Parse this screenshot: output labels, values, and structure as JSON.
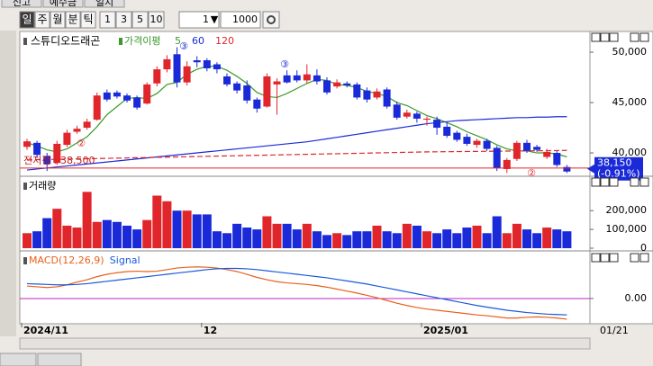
{
  "tabs": [
    "신고",
    "예수금",
    "일지"
  ],
  "toolbar": {
    "periods": [
      "일",
      "주",
      "월",
      "분",
      "틱"
    ],
    "intervals": [
      "1",
      "3",
      "5",
      "10"
    ],
    "unit": "1",
    "count": "1000"
  },
  "chart_data": [
    {
      "type": "candlestick",
      "title": "스튜디오드래곤",
      "legend_title": "가격이평",
      "up_color": "#e0262b",
      "down_color": "#1a2ad8",
      "categories": [
        "2024/11",
        null,
        null,
        null,
        null,
        null,
        null,
        null,
        null,
        null,
        null,
        null,
        null,
        null,
        null,
        null,
        null,
        null,
        "12",
        null,
        null,
        null,
        null,
        null,
        null,
        null,
        null,
        null,
        null,
        null,
        null,
        null,
        null,
        null,
        null,
        null,
        null,
        null,
        null,
        null,
        "2025/01",
        null,
        null,
        null,
        null,
        null,
        null,
        null,
        null,
        null,
        null,
        null,
        null,
        null,
        null
      ],
      "open": [
        40600,
        41000,
        39700,
        39000,
        40800,
        42100,
        42500,
        43300,
        46000,
        46000,
        45700,
        45500,
        44900,
        46900,
        48300,
        49800,
        47000,
        49200,
        49200,
        48800,
        47600,
        46900,
        46700,
        45300,
        44600,
        46800,
        47700,
        47700,
        47200,
        47700,
        47200,
        46600,
        46900,
        46800,
        46200,
        45500,
        46300,
        44800,
        43600,
        43900,
        43300,
        43300,
        42600,
        42000,
        41600,
        40800,
        41200,
        40500,
        38400,
        39400,
        41000,
        40600,
        39600,
        40000,
        38600
      ],
      "close": [
        41150,
        39800,
        38900,
        40900,
        42000,
        42400,
        43100,
        45700,
        45300,
        45600,
        45200,
        44500,
        46800,
        48300,
        49300,
        47000,
        48600,
        49000,
        48400,
        48300,
        46800,
        46200,
        45200,
        44400,
        47600,
        47100,
        47000,
        47200,
        47800,
        47100,
        46000,
        47000,
        46700,
        45500,
        45300,
        46100,
        44600,
        43500,
        44000,
        43400,
        43400,
        42500,
        41700,
        41300,
        40900,
        41200,
        40400,
        38500,
        39300,
        41000,
        40200,
        40300,
        40100,
        38800,
        38150
      ],
      "high": [
        41400,
        41200,
        40000,
        41200,
        42300,
        42700,
        43400,
        46000,
        46300,
        46200,
        45900,
        45700,
        47000,
        48600,
        49700,
        50500,
        49100,
        49600,
        49400,
        49000,
        47900,
        47100,
        47200,
        45500,
        47900,
        47400,
        48200,
        48200,
        48800,
        48300,
        47500,
        47300,
        47100,
        47000,
        46500,
        46400,
        46500,
        45100,
        44300,
        44100,
        43600,
        43600,
        43000,
        42200,
        41900,
        41400,
        41400,
        40700,
        39500,
        41200,
        41300,
        40800,
        40400,
        40200,
        38800
      ],
      "low": [
        40300,
        39500,
        38200,
        38800,
        40600,
        41900,
        42300,
        43200,
        45100,
        45400,
        45000,
        44300,
        44800,
        46600,
        48000,
        46500,
        46700,
        48500,
        48100,
        47900,
        46600,
        45900,
        44900,
        44000,
        44500,
        43800,
        46900,
        47000,
        46900,
        46800,
        45800,
        46400,
        46500,
        45300,
        45000,
        45300,
        44400,
        43300,
        43400,
        43000,
        42700,
        41800,
        41500,
        41100,
        40700,
        40500,
        40200,
        38200,
        38000,
        39200,
        40000,
        40100,
        39400,
        38600,
        38000
      ],
      "series": [
        {
          "name": "5",
          "color": "#3a9a2a",
          "dash": false,
          "values": [
            41000,
            40700,
            40300,
            40100,
            40400,
            41000,
            41600,
            42600,
            43800,
            44600,
            45400,
            45500,
            45400,
            45900,
            46800,
            47000,
            47800,
            48300,
            48600,
            48600,
            48200,
            47600,
            46900,
            46000,
            45600,
            45500,
            45900,
            46400,
            46900,
            47300,
            47200,
            46800,
            46700,
            46500,
            46100,
            45900,
            45600,
            45000,
            44700,
            44200,
            43700,
            43400,
            43000,
            42600,
            42100,
            41700,
            41300,
            40800,
            40400,
            40200,
            40200,
            40000,
            40000,
            39900,
            39600
          ]
        },
        {
          "name": "60",
          "color": "#1a2ad8",
          "dash": false,
          "values": [
            38300,
            38400,
            38500,
            38600,
            38700,
            38800,
            38900,
            39000,
            39100,
            39200,
            39300,
            39400,
            39500,
            39600,
            39700,
            39800,
            39900,
            40000,
            40100,
            40200,
            40300,
            40400,
            40500,
            40600,
            40700,
            40800,
            40900,
            41000,
            41100,
            41250,
            41400,
            41550,
            41700,
            41850,
            42000,
            42150,
            42300,
            42450,
            42600,
            42750,
            42900,
            43000,
            43100,
            43200,
            43250,
            43300,
            43350,
            43400,
            43450,
            43500,
            43500,
            43550,
            43550,
            43600,
            43600
          ]
        },
        {
          "name": "120",
          "color": "#e0262b",
          "dash": true,
          "values": [
            39300,
            39320,
            39340,
            39360,
            39380,
            39400,
            39420,
            39440,
            39460,
            39480,
            39500,
            39520,
            39540,
            39560,
            39580,
            39600,
            39620,
            39640,
            39660,
            39680,
            39700,
            39720,
            39740,
            39760,
            39780,
            39800,
            39820,
            39840,
            39860,
            39880,
            39900,
            39920,
            39940,
            39960,
            39980,
            40000,
            40020,
            40040,
            40060,
            40080,
            40100,
            40110,
            40120,
            40130,
            40140,
            40150,
            40160,
            40170,
            40180,
            40190,
            40200,
            40210,
            40220,
            40230,
            40250
          ]
        }
      ],
      "ylim": [
        37770,
        51880
      ],
      "yticks": [
        {
          "value": 40000,
          "label": "40,000"
        },
        {
          "value": 45000,
          "label": "45,000"
        },
        {
          "value": 50000,
          "label": "50,000"
        }
      ],
      "low_line": {
        "value": 38500,
        "label": "전저점 : 38,500"
      },
      "current": {
        "value": 38150,
        "label": "38,150",
        "change": "(-0.91%)"
      },
      "annotations": [
        "②",
        "③",
        "③",
        "②"
      ],
      "cursor_date": "01/21"
    },
    {
      "type": "bar",
      "title": "거래량",
      "values": [
        80000,
        90000,
        160000,
        210000,
        120000,
        110000,
        300000,
        140000,
        150000,
        140000,
        120000,
        100000,
        150000,
        280000,
        250000,
        200000,
        200000,
        180000,
        180000,
        90000,
        80000,
        130000,
        110000,
        100000,
        170000,
        130000,
        130000,
        100000,
        130000,
        90000,
        70000,
        80000,
        70000,
        90000,
        90000,
        120000,
        90000,
        80000,
        130000,
        120000,
        90000,
        80000,
        100000,
        80000,
        110000,
        120000,
        80000,
        170000,
        80000,
        130000,
        100000,
        80000,
        110000,
        100000,
        90000
      ],
      "ylim": [
        0,
        340000
      ],
      "yticks": [
        0,
        {
          "value": 100000,
          "label": "100,000"
        },
        {
          "value": 200000,
          "label": "200,000"
        }
      ]
    },
    {
      "type": "line",
      "series": [
        {
          "name": "MACD(12,26,9)",
          "color": "#e8601c",
          "values": [
            320,
            300,
            280,
            300,
            350,
            420,
            480,
            560,
            620,
            660,
            690,
            700,
            690,
            700,
            740,
            780,
            800,
            810,
            800,
            780,
            740,
            690,
            620,
            540,
            480,
            430,
            400,
            380,
            360,
            330,
            290,
            240,
            190,
            140,
            80,
            20,
            -50,
            -120,
            -180,
            -230,
            -270,
            -300,
            -330,
            -360,
            -390,
            -420,
            -440,
            -470,
            -500,
            -500,
            -480,
            -470,
            -480,
            -500,
            -530
          ]
        },
        {
          "name": "Signal",
          "color": "#1a5ad8",
          "values": [
            380,
            370,
            360,
            350,
            350,
            360,
            380,
            410,
            440,
            470,
            500,
            530,
            560,
            590,
            620,
            650,
            680,
            710,
            740,
            760,
            770,
            770,
            760,
            740,
            710,
            680,
            650,
            620,
            590,
            560,
            530,
            490,
            450,
            410,
            370,
            320,
            270,
            220,
            170,
            120,
            70,
            20,
            -30,
            -80,
            -130,
            -180,
            -220,
            -260,
            -300,
            -330,
            -360,
            -380,
            -400,
            -410,
            -420
          ]
        }
      ],
      "ylim": [
        -600,
        1150
      ],
      "yticks": [
        {
          "value": 0,
          "label": "0.00"
        }
      ],
      "zero_color": "#c020c0"
    }
  ]
}
